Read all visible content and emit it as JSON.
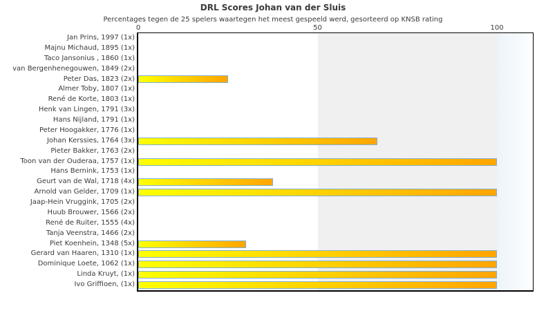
{
  "chart_data": {
    "type": "bar",
    "orientation": "horizontal",
    "title": "DRL Scores Johan van der Sluis",
    "subtitle": "Percentages tegen de 25 spelers waartegen het meest gespeeld werd, gesorteerd op KNSB rating",
    "xlabel": "",
    "ylabel": "",
    "xlim": [
      0,
      110
    ],
    "ticks": [
      0,
      50,
      100
    ],
    "legend": "none",
    "grid": "background-bands",
    "categories": [
      "Jan Prins, 1997 (1x)",
      "Majnu Michaud, 1895 (1x)",
      "Taco Jansonius , 1860 (1x)",
      "van Bergenhenegouwen, 1849 (2x)",
      "Peter Das, 1823 (2x)",
      "Almer Toby, 1807 (1x)",
      "René de Korte, 1803 (1x)",
      "Henk van Lingen, 1791 (3x)",
      "Hans Nijland, 1791 (1x)",
      "Peter Hoogakker, 1776 (1x)",
      "Johan Kerssies, 1764 (3x)",
      "Pieter Bakker, 1763 (2x)",
      "Toon van der Ouderaa, 1757 (1x)",
      "Hans Bernink, 1753 (1x)",
      "Geurt van de Wal, 1718 (4x)",
      "Arnold van Gelder, 1709 (1x)",
      "Jaap-Hein Vruggink, 1705 (2x)",
      "Huub Brouwer, 1566 (2x)",
      "René de Ruiter, 1555 (4x)",
      "Tanja Veenstra, 1466 (2x)",
      "Piet Koenhein, 1348 (5x)",
      "Gerard van Haaren, 1310 (1x)",
      "Dominique Loete, 1062 (1x)",
      "Linda Kruyt,  (1x)",
      "Ivo Griffioen,  (1x)"
    ],
    "values": [
      0,
      0,
      0,
      0,
      25,
      0,
      0,
      0,
      0,
      0,
      66.7,
      0,
      100,
      0,
      37.5,
      100,
      0,
      0,
      0,
      0,
      30,
      100,
      100,
      100,
      100
    ],
    "bands": [
      {
        "from": 50,
        "to": 100,
        "fill": "grey"
      },
      {
        "from": 100,
        "to": 110,
        "fill": "blue"
      }
    ]
  },
  "colors": {
    "bar_gradient_start": "#ffff00",
    "bar_gradient_end": "#ffa500",
    "bar_border": "#7fafd4",
    "band_grey": "#f0f0f0",
    "band_blue_start": "#edf4f9",
    "band_blue_end": "#fcfeff",
    "plot_border": "#000000",
    "text": "#3a3a3a",
    "background": "#ffffff"
  }
}
